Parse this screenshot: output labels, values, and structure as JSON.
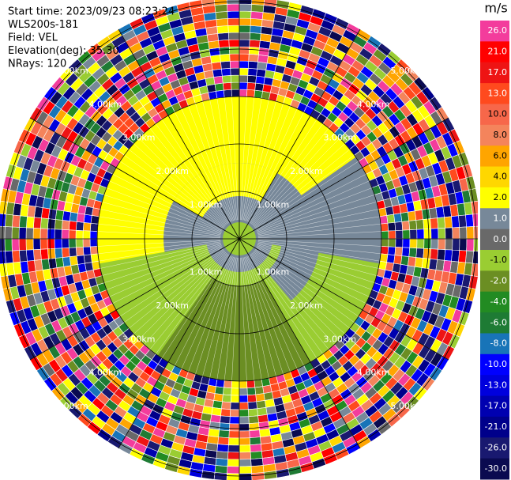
{
  "chart_data": {
    "type": "ppi",
    "info": [
      "Start time: 2023/09/23 08:23:24",
      "WLS200s-181",
      "Field: VEL",
      "Elevation(deg): 35.30",
      "NRays: 120"
    ],
    "colorbar_title": "m/s",
    "colorbar_ticks": [
      {
        "value": 26,
        "label": "26.0"
      },
      {
        "value": 21,
        "label": "21.0"
      },
      {
        "value": 17,
        "label": "17.0"
      },
      {
        "value": 13,
        "label": "13.0"
      },
      {
        "value": 10,
        "label": "10.0"
      },
      {
        "value": 8,
        "label": "8.0"
      },
      {
        "value": 6,
        "label": "6.0"
      },
      {
        "value": 4,
        "label": "4.0"
      },
      {
        "value": 2,
        "label": "2.0"
      },
      {
        "value": 1,
        "label": "1.0"
      },
      {
        "value": 0,
        "label": "0.0"
      },
      {
        "value": -1,
        "label": "-1.0"
      },
      {
        "value": -2,
        "label": "-2.0"
      },
      {
        "value": -4,
        "label": "-4.0"
      },
      {
        "value": -6,
        "label": "-6.0"
      },
      {
        "value": -8,
        "label": "-8.0"
      },
      {
        "value": -10,
        "label": "-10.0"
      },
      {
        "value": -13,
        "label": "-13.0"
      },
      {
        "value": -17,
        "label": "-17.0"
      },
      {
        "value": -21,
        "label": "-21.0"
      },
      {
        "value": -26,
        "label": "-26.0"
      },
      {
        "value": -30,
        "label": "-30.0"
      }
    ],
    "colorbar_colors": [
      "#f33c9c",
      "#ff0000",
      "#ee1414",
      "#ff4a1e",
      "#f7674a",
      "#f4845c",
      "#ffa500",
      "#ffd700",
      "#ffff00",
      "#778899",
      "#696969",
      "#9acd32",
      "#6b8e23",
      "#228b22",
      "#1e7b34",
      "#1874b8",
      "#0000ff",
      "#0000dd",
      "#0000b0",
      "#00008b",
      "#191970",
      "#0a0a50"
    ],
    "rlim": [
      0,
      5.1
    ],
    "range_rings": [
      {
        "value": 1,
        "label": "1.00km"
      },
      {
        "value": 2,
        "label": "2.00km"
      },
      {
        "value": 3,
        "label": "3.00km"
      },
      {
        "value": 4,
        "label": "4.00km"
      },
      {
        "value": 5,
        "label": "5.00km"
      }
    ],
    "zones": [
      {
        "az": [
          0,
          360
        ],
        "r": [
          0,
          3
        ],
        "value": 1.5
      },
      {
        "az": [
          -110,
          55
        ],
        "r": [
          1.6,
          3
        ],
        "value": 3
      },
      {
        "az": [
          -60,
          30
        ],
        "r": [
          0.9,
          1.6
        ],
        "value": 3
      },
      {
        "az": [
          100,
          260
        ],
        "r": [
          0.7,
          3
        ],
        "value": -0.5
      },
      {
        "az": [
          150,
          215
        ],
        "r": [
          1.0,
          3
        ],
        "value": -1.5
      },
      {
        "az": [
          95,
          140
        ],
        "r": [
          0.9,
          1.7
        ],
        "value": 1.5
      },
      {
        "az": [
          0,
          360
        ],
        "r": [
          0,
          0.35
        ],
        "value": -0.5
      }
    ],
    "noise_r": [
      3,
      5.1
    ],
    "noise_values": [
      26,
      -21,
      8,
      1.5,
      -8,
      17,
      3,
      -30,
      13,
      0.5,
      -13,
      21,
      -0.5,
      5,
      -26,
      10,
      -3,
      30,
      -10,
      6,
      -17,
      2.5,
      -5,
      14,
      -1.5,
      7,
      -24
    ]
  }
}
